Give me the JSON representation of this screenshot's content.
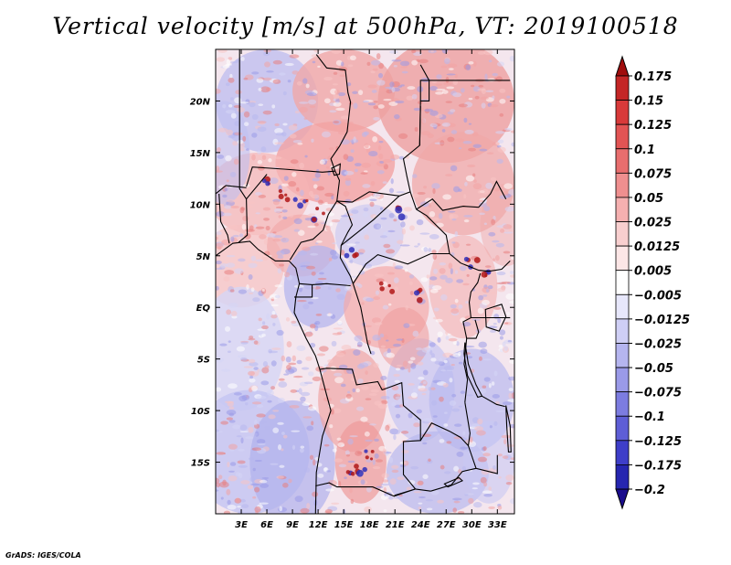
{
  "chart_data": {
    "type": "heatmap",
    "title": "Vertical velocity [m/s] at 500hPa, VT: 2019100518",
    "variable": "Vertical velocity",
    "units": "m/s",
    "level": "500hPa",
    "valid_time": "2019100518",
    "lon_range": [
      0,
      35
    ],
    "lat_range": [
      -20,
      25
    ],
    "x_ticks": [
      {
        "value": 3,
        "label": "3E"
      },
      {
        "value": 6,
        "label": "6E"
      },
      {
        "value": 9,
        "label": "9E"
      },
      {
        "value": 12,
        "label": "12E"
      },
      {
        "value": 15,
        "label": "15E"
      },
      {
        "value": 18,
        "label": "18E"
      },
      {
        "value": 21,
        "label": "21E"
      },
      {
        "value": 24,
        "label": "24E"
      },
      {
        "value": 27,
        "label": "27E"
      },
      {
        "value": 30,
        "label": "30E"
      },
      {
        "value": 33,
        "label": "33E"
      }
    ],
    "y_ticks": [
      {
        "value": 20,
        "label": "20N"
      },
      {
        "value": 15,
        "label": "15N"
      },
      {
        "value": 10,
        "label": "10N"
      },
      {
        "value": 5,
        "label": "5N"
      },
      {
        "value": 0,
        "label": "EQ"
      },
      {
        "value": -5,
        "label": "5S"
      },
      {
        "value": -10,
        "label": "10S"
      },
      {
        "value": -15,
        "label": "15S"
      }
    ],
    "colorbar": {
      "labels": [
        "0.175",
        "0.15",
        "0.125",
        "0.1",
        "0.075",
        "0.05",
        "0.025",
        "0.0125",
        "0.005",
        "−0.005",
        "−0.0125",
        "−0.025",
        "−0.05",
        "−0.075",
        "−0.1",
        "−0.125",
        "−0.175",
        "−0.2"
      ],
      "colors": [
        "#a00d0d",
        "#c42626",
        "#d83a3a",
        "#e25454",
        "#e86e6e",
        "#ef8f8f",
        "#f5b0b0",
        "#f8cfcf",
        "#fce6e6",
        "#ffffff",
        "#e7e7fb",
        "#cfcff5",
        "#b5b5ef",
        "#9a9ae8",
        "#7c7ce0",
        "#5e5ed6",
        "#3e3ec9",
        "#2626b0",
        "#1a0c8c"
      ]
    }
  },
  "credit": "GrADS: IGES/COLA"
}
